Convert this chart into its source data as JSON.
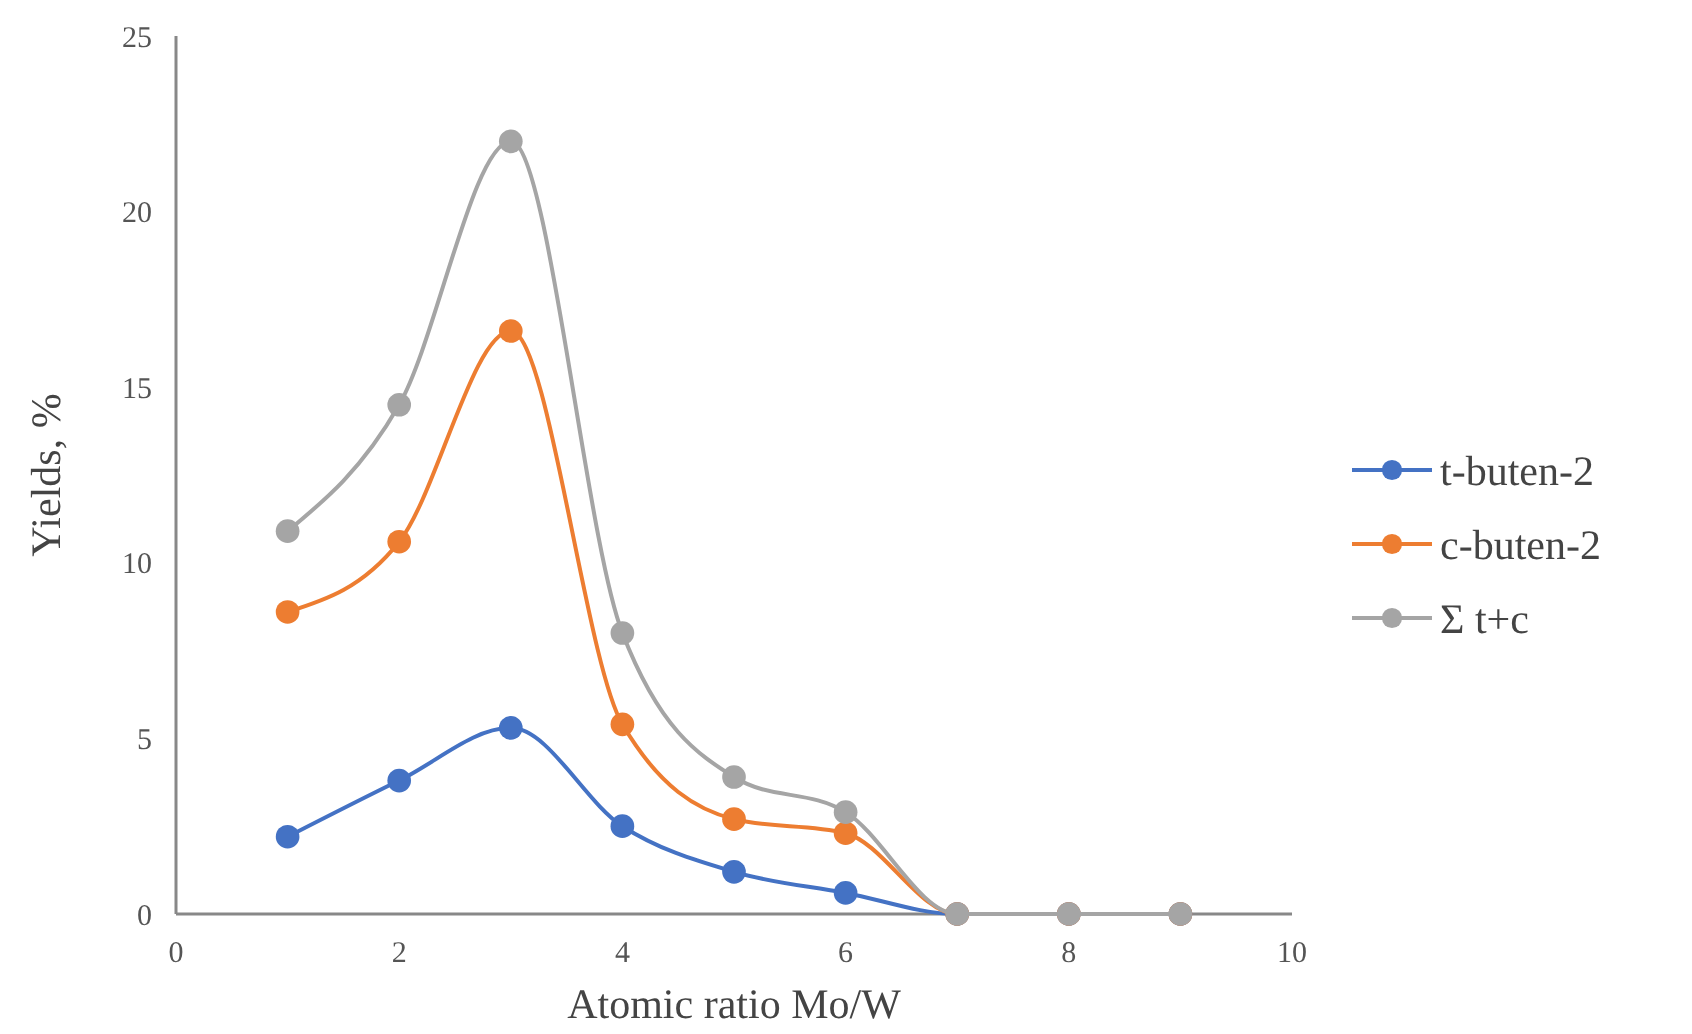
{
  "chart_data": {
    "type": "line",
    "xlabel": "Atomic ratio Mo/W",
    "ylabel": "Yields, %",
    "x": [
      1,
      2,
      3,
      4,
      5,
      6,
      7,
      8,
      9
    ],
    "series": [
      {
        "name": "t-buten-2",
        "color": "#4472c4",
        "values": [
          2.2,
          3.8,
          5.3,
          2.5,
          1.2,
          0.6,
          0,
          0,
          0
        ]
      },
      {
        "name": "c-buten-2",
        "color": "#ed7d31",
        "values": [
          8.6,
          10.6,
          16.6,
          5.4,
          2.7,
          2.3,
          0,
          0,
          0
        ]
      },
      {
        "name": "Σ t+c",
        "color": "#a5a5a5",
        "values": [
          10.9,
          14.5,
          22,
          8,
          3.9,
          2.9,
          0,
          0,
          0
        ]
      }
    ],
    "xlim": [
      0,
      10
    ],
    "xticks": [
      0,
      2,
      4,
      6,
      8,
      10
    ],
    "ylim": [
      0,
      25
    ],
    "yticks": [
      0,
      5,
      10,
      15,
      20,
      25
    ],
    "grid": false,
    "legend": "right",
    "marker": "circle",
    "line_style": "solid"
  }
}
